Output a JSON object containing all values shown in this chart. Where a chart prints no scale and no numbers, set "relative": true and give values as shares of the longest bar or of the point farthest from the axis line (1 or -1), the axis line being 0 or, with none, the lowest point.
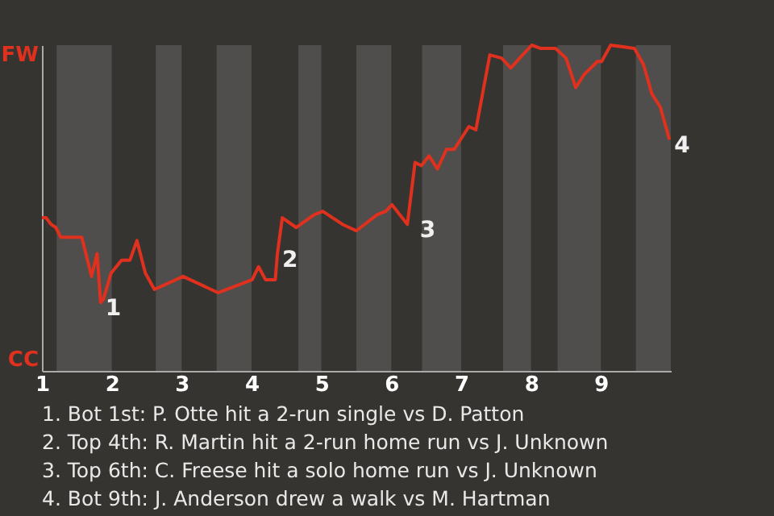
{
  "chart_data": {
    "type": "line",
    "x": [
      1,
      1.06,
      1.13,
      1.2,
      1.27,
      1.57,
      1.71,
      1.79,
      1.84,
      1.88,
      1.99,
      2.14,
      2.26,
      2.36,
      2.48,
      2.61,
      3.02,
      3.52,
      4.01,
      4.1,
      4.2,
      4.34,
      4.37,
      4.44,
      4.64,
      4.9,
      5.02,
      5.3,
      5.5,
      5.8,
      5.92,
      6.01,
      6.23,
      6.34,
      6.43,
      6.54,
      6.66,
      6.79,
      6.9,
      7.11,
      7.21,
      7.41,
      7.58,
      7.71,
      7.88,
      8.01,
      8.14,
      8.35,
      8.5,
      8.64,
      8.76,
      8.95,
      9.01,
      9.14,
      9.48,
      9.61,
      9.73,
      9.85,
      9.98
    ],
    "series": [
      {
        "color": "#e0301e",
        "values": [
          0.47,
          0.47,
          0.45,
          0.44,
          0.41,
          0.41,
          0.29,
          0.36,
          0.21,
          0.22,
          0.3,
          0.34,
          0.34,
          0.4,
          0.3,
          0.25,
          0.29,
          0.24,
          0.28,
          0.32,
          0.28,
          0.28,
          0.36,
          0.47,
          0.44,
          0.48,
          0.49,
          0.45,
          0.43,
          0.48,
          0.49,
          0.51,
          0.45,
          0.64,
          0.63,
          0.66,
          0.62,
          0.68,
          0.68,
          0.75,
          0.74,
          0.97,
          0.96,
          0.93,
          0.97,
          1,
          0.99,
          0.99,
          0.96,
          0.87,
          0.91,
          0.95,
          0.95,
          1,
          0.99,
          0.94,
          0.85,
          0.81,
          0.71
        ]
      }
    ],
    "relative": true,
    "xlim": [
      1,
      10
    ],
    "xticks": [
      1,
      2,
      3,
      4,
      5,
      6,
      7,
      8,
      9
    ],
    "marker": "none",
    "line_style": "solid",
    "bands": [
      {
        "axis": "x",
        "from": 1.21,
        "to": 2,
        "color": "#4f4e4c"
      },
      {
        "axis": "x",
        "from": 2.63,
        "to": 3,
        "color": "#4f4e4c"
      },
      {
        "axis": "x",
        "from": 3.5,
        "to": 4,
        "color": "#4f4e4c"
      },
      {
        "axis": "x",
        "from": 4.67,
        "to": 5,
        "color": "#4f4e4c"
      },
      {
        "axis": "x",
        "from": 5.5,
        "to": 6,
        "color": "#4f4e4c"
      },
      {
        "axis": "x",
        "from": 6.44,
        "to": 7,
        "color": "#4f4e4c"
      },
      {
        "axis": "x",
        "from": 7.6,
        "to": 8,
        "color": "#4f4e4c"
      },
      {
        "axis": "x",
        "from": 8.38,
        "to": 9,
        "color": "#4f4e4c"
      },
      {
        "axis": "x",
        "from": 9.5,
        "to": 10,
        "color": "#4f4e4c"
      }
    ],
    "annotations": [
      "FW",
      "CC",
      {
        "text": "1",
        "x": 1.84,
        "y": 0.21
      },
      {
        "text": "2",
        "x": 4.37,
        "y": 0.36
      },
      {
        "text": "3",
        "x": 6.34,
        "y": 0.45
      },
      {
        "text": "4",
        "x": 9.98,
        "y": 0.71
      },
      "1. Bot 1st: P. Otte hit a 2-run single vs D. Patton",
      "2. Top 4th: R. Martin hit a 2-run home run vs J. Unknown",
      "3. Top 6th: C. Freese hit a solo home run vs J. Unknown",
      "4. Bot 9th: J. Anderson drew a walk vs M. Hartman"
    ]
  }
}
